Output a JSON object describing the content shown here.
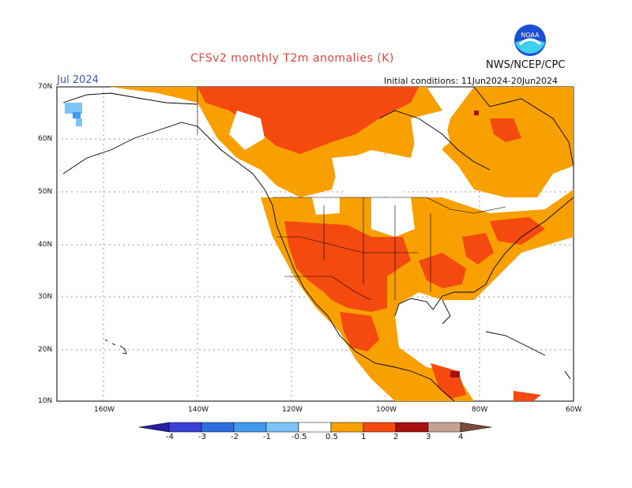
{
  "title": "CFSv2 monthly T2m anomalies (K)",
  "agency": "NWS/NCEP/CPC",
  "logo_text": "NOAA",
  "month": "Jul 2024",
  "initial_conditions": "Initial conditions: 11Jun2024-20Jun2024",
  "lat_labels": [
    "70N",
    "60N",
    "50N",
    "40N",
    "30N",
    "20N",
    "10N"
  ],
  "lon_labels": [
    "160W",
    "140W",
    "120W",
    "100W",
    "80W",
    "60W"
  ],
  "colorbar": {
    "labels": [
      "-4",
      "-3",
      "-2",
      "-1",
      "-0.5",
      "0.5",
      "1",
      "2",
      "3",
      "4"
    ],
    "colors": [
      "#2a1ea0",
      "#3a3fd8",
      "#2f6ee0",
      "#3f9af0",
      "#7ec3f5",
      "#ffffff",
      "#f7a000",
      "#f44a0f",
      "#a80f0f",
      "#c8a195",
      "#7a4a3a"
    ]
  },
  "map_extent": {
    "lon_min": -170,
    "lon_max": -60,
    "lat_min": 10,
    "lat_max": 70
  },
  "anomaly_colors": {
    "orange": "#f7a000",
    "red": "#f44a0f",
    "darkred": "#a80f0f",
    "lightblue": "#7ec3f5",
    "blue": "#3f9af0"
  }
}
